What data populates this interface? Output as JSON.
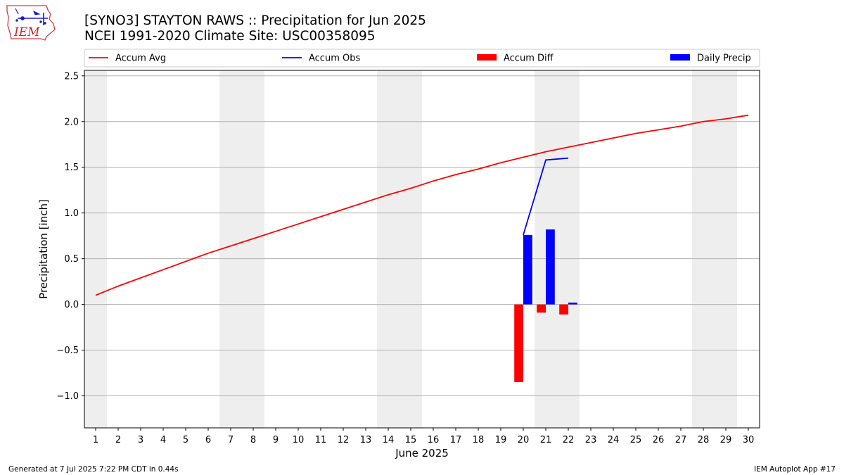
{
  "title_line1": "[SYNO3] STAYTON RAWS :: Precipitation for Jun 2025",
  "title_line2": "NCEI 1991-2020 Climate Site: USC00358095",
  "logo": {
    "text": "IEM",
    "color": "#cc2222"
  },
  "footer": {
    "left": "Generated at 7 Jul 2025 7:22 PM CDT in 0.44s",
    "right": "IEM Autoplot App #17"
  },
  "chart_data": {
    "type": "line",
    "xlabel": "June 2025",
    "ylabel": "Precipitation [inch]",
    "xlim": [
      0.5,
      30.5
    ],
    "ylim": [
      -1.35,
      2.56
    ],
    "x": [
      1,
      2,
      3,
      4,
      5,
      6,
      7,
      8,
      9,
      10,
      11,
      12,
      13,
      14,
      15,
      16,
      17,
      18,
      19,
      20,
      21,
      22,
      23,
      24,
      25,
      26,
      27,
      28,
      29,
      30
    ],
    "x_tick_labels": [
      "1",
      "2",
      "3",
      "4",
      "5",
      "6",
      "7",
      "8",
      "9",
      "10",
      "11",
      "12",
      "13",
      "14",
      "15",
      "16",
      "17",
      "18",
      "19",
      "20",
      "21",
      "22",
      "23",
      "24",
      "25",
      "26",
      "27",
      "28",
      "29",
      "30"
    ],
    "y_ticks": [
      -1.0,
      -0.5,
      0.0,
      0.5,
      1.0,
      1.5,
      2.0,
      2.5
    ],
    "y_tick_labels": [
      "−1.0",
      "−0.5",
      "0.0",
      "0.5",
      "1.0",
      "1.5",
      "2.0",
      "2.5"
    ],
    "grid": "horizontal",
    "weekend_shading": [
      [
        0.5,
        1.5
      ],
      [
        6.5,
        8.5
      ],
      [
        13.5,
        15.5
      ],
      [
        20.5,
        22.5
      ],
      [
        27.5,
        29.5
      ]
    ],
    "shade_color": "#eeeeee",
    "legend": {
      "placement": "top, above plot",
      "entries": [
        {
          "label": "Accum Avg",
          "kind": "line",
          "color": "#ff0000"
        },
        {
          "label": "Accum Obs",
          "kind": "line",
          "color": "#0000ff"
        },
        {
          "label": "Accum Diff",
          "kind": "bar",
          "color": "#ff0000"
        },
        {
          "label": "Daily Precip",
          "kind": "bar",
          "color": "#0000ff"
        }
      ]
    },
    "series": [
      {
        "name": "Accum Avg",
        "type": "line",
        "color": "#ff0000",
        "x": [
          1,
          2,
          3,
          4,
          5,
          6,
          7,
          8,
          9,
          10,
          11,
          12,
          13,
          14,
          15,
          16,
          17,
          18,
          19,
          20,
          21,
          22,
          23,
          24,
          25,
          26,
          27,
          28,
          29,
          30
        ],
        "values": [
          0.1,
          0.2,
          0.29,
          0.38,
          0.47,
          0.56,
          0.64,
          0.72,
          0.8,
          0.88,
          0.96,
          1.04,
          1.12,
          1.2,
          1.27,
          1.35,
          1.42,
          1.48,
          1.55,
          1.61,
          1.67,
          1.72,
          1.77,
          1.82,
          1.87,
          1.91,
          1.95,
          2.0,
          2.03,
          2.07
        ]
      },
      {
        "name": "Accum Obs",
        "type": "line",
        "color": "#0000ff",
        "x": [
          20,
          21,
          22
        ],
        "values": [
          0.76,
          1.58,
          1.6
        ]
      },
      {
        "name": "Accum Diff",
        "type": "bar",
        "color": "#ff0000",
        "x": [
          20,
          21,
          22
        ],
        "values": [
          -0.85,
          -0.09,
          -0.11
        ]
      },
      {
        "name": "Daily Precip",
        "type": "bar",
        "color": "#0000ff",
        "x": [
          20,
          21,
          22
        ],
        "values": [
          0.76,
          0.82,
          0.02
        ]
      }
    ]
  }
}
